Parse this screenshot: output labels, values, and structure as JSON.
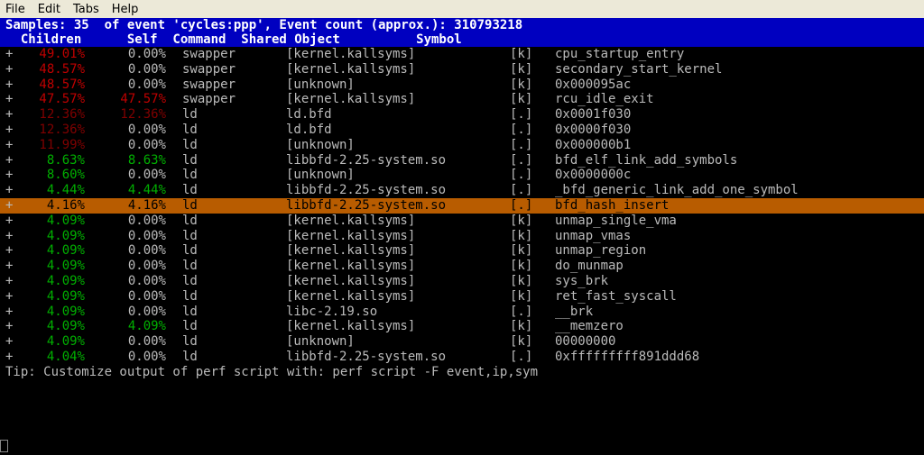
{
  "menubar": [
    "File",
    "Edit",
    "Tabs",
    "Help"
  ],
  "header": {
    "summary": "Samples: 35  of event 'cycles:ppp', Event count (approx.): 310793218",
    "columns": "  Children      Self  Command  Shared Object          Symbol"
  },
  "rows": [
    {
      "expand": "+",
      "children": "49.01%",
      "children_color": "red",
      "self": "0.00%",
      "self_color": "grey",
      "command": "swapper",
      "shared": "[kernel.kallsyms]",
      "flag": "[k]",
      "symbol": "cpu_startup_entry"
    },
    {
      "expand": "+",
      "children": "48.57%",
      "children_color": "red",
      "self": "0.00%",
      "self_color": "grey",
      "command": "swapper",
      "shared": "[kernel.kallsyms]",
      "flag": "[k]",
      "symbol": "secondary_start_kernel"
    },
    {
      "expand": "+",
      "children": "48.57%",
      "children_color": "red",
      "self": "0.00%",
      "self_color": "grey",
      "command": "swapper",
      "shared": "[unknown]",
      "flag": "[k]",
      "symbol": "0x000095ac"
    },
    {
      "expand": "+",
      "children": "47.57%",
      "children_color": "red",
      "self": "47.57%",
      "self_color": "red",
      "command": "swapper",
      "shared": "[kernel.kallsyms]",
      "flag": "[k]",
      "symbol": "rcu_idle_exit"
    },
    {
      "expand": "+",
      "children": "12.36%",
      "children_color": "darkred",
      "self": "12.36%",
      "self_color": "darkred",
      "command": "ld",
      "shared": "ld.bfd",
      "flag": "[.]",
      "symbol": "0x0001f030"
    },
    {
      "expand": "+",
      "children": "12.36%",
      "children_color": "darkred",
      "self": "0.00%",
      "self_color": "grey",
      "command": "ld",
      "shared": "ld.bfd",
      "flag": "[.]",
      "symbol": "0x0000f030"
    },
    {
      "expand": "+",
      "children": "11.99%",
      "children_color": "darkred",
      "self": "0.00%",
      "self_color": "grey",
      "command": "ld",
      "shared": "[unknown]",
      "flag": "[.]",
      "symbol": "0x000000b1"
    },
    {
      "expand": "+",
      "children": "8.63%",
      "children_color": "green",
      "self": "8.63%",
      "self_color": "green",
      "command": "ld",
      "shared": "libbfd-2.25-system.so",
      "flag": "[.]",
      "symbol": "bfd_elf_link_add_symbols"
    },
    {
      "expand": "+",
      "children": "8.60%",
      "children_color": "green",
      "self": "0.00%",
      "self_color": "grey",
      "command": "ld",
      "shared": "[unknown]",
      "flag": "[.]",
      "symbol": "0x0000000c"
    },
    {
      "expand": "+",
      "children": "4.44%",
      "children_color": "green",
      "self": "4.44%",
      "self_color": "green",
      "command": "ld",
      "shared": "libbfd-2.25-system.so",
      "flag": "[.]",
      "symbol": "_bfd_generic_link_add_one_symbol"
    },
    {
      "expand": "+",
      "children": "4.16%",
      "children_color": "green",
      "self": "4.16%",
      "self_color": "green",
      "command": "ld",
      "shared": "libbfd-2.25-system.so",
      "flag": "[.]",
      "symbol": "bfd_hash_insert",
      "selected": true
    },
    {
      "expand": "+",
      "children": "4.09%",
      "children_color": "green",
      "self": "0.00%",
      "self_color": "grey",
      "command": "ld",
      "shared": "[kernel.kallsyms]",
      "flag": "[k]",
      "symbol": "unmap_single_vma"
    },
    {
      "expand": "+",
      "children": "4.09%",
      "children_color": "green",
      "self": "0.00%",
      "self_color": "grey",
      "command": "ld",
      "shared": "[kernel.kallsyms]",
      "flag": "[k]",
      "symbol": "unmap_vmas"
    },
    {
      "expand": "+",
      "children": "4.09%",
      "children_color": "green",
      "self": "0.00%",
      "self_color": "grey",
      "command": "ld",
      "shared": "[kernel.kallsyms]",
      "flag": "[k]",
      "symbol": "unmap_region"
    },
    {
      "expand": "+",
      "children": "4.09%",
      "children_color": "green",
      "self": "0.00%",
      "self_color": "grey",
      "command": "ld",
      "shared": "[kernel.kallsyms]",
      "flag": "[k]",
      "symbol": "do_munmap"
    },
    {
      "expand": "+",
      "children": "4.09%",
      "children_color": "green",
      "self": "0.00%",
      "self_color": "grey",
      "command": "ld",
      "shared": "[kernel.kallsyms]",
      "flag": "[k]",
      "symbol": "sys_brk"
    },
    {
      "expand": "+",
      "children": "4.09%",
      "children_color": "green",
      "self": "0.00%",
      "self_color": "grey",
      "command": "ld",
      "shared": "[kernel.kallsyms]",
      "flag": "[k]",
      "symbol": "ret_fast_syscall"
    },
    {
      "expand": "+",
      "children": "4.09%",
      "children_color": "green",
      "self": "0.00%",
      "self_color": "grey",
      "command": "ld",
      "shared": "libc-2.19.so",
      "flag": "[.]",
      "symbol": "__brk"
    },
    {
      "expand": "+",
      "children": "4.09%",
      "children_color": "green",
      "self": "4.09%",
      "self_color": "green",
      "command": "ld",
      "shared": "[kernel.kallsyms]",
      "flag": "[k]",
      "symbol": "__memzero"
    },
    {
      "expand": "+",
      "children": "4.09%",
      "children_color": "green",
      "self": "0.00%",
      "self_color": "grey",
      "command": "ld",
      "shared": "[unknown]",
      "flag": "[k]",
      "symbol": "00000000"
    },
    {
      "expand": "+",
      "children": "4.04%",
      "children_color": "green",
      "self": "0.00%",
      "self_color": "grey",
      "command": "ld",
      "shared": "libbfd-2.25-system.so",
      "flag": "[.]",
      "symbol": "0xfffffffff891ddd68"
    }
  ],
  "tip": "Tip: Customize output of perf script with: perf script -F event,ip,sym"
}
